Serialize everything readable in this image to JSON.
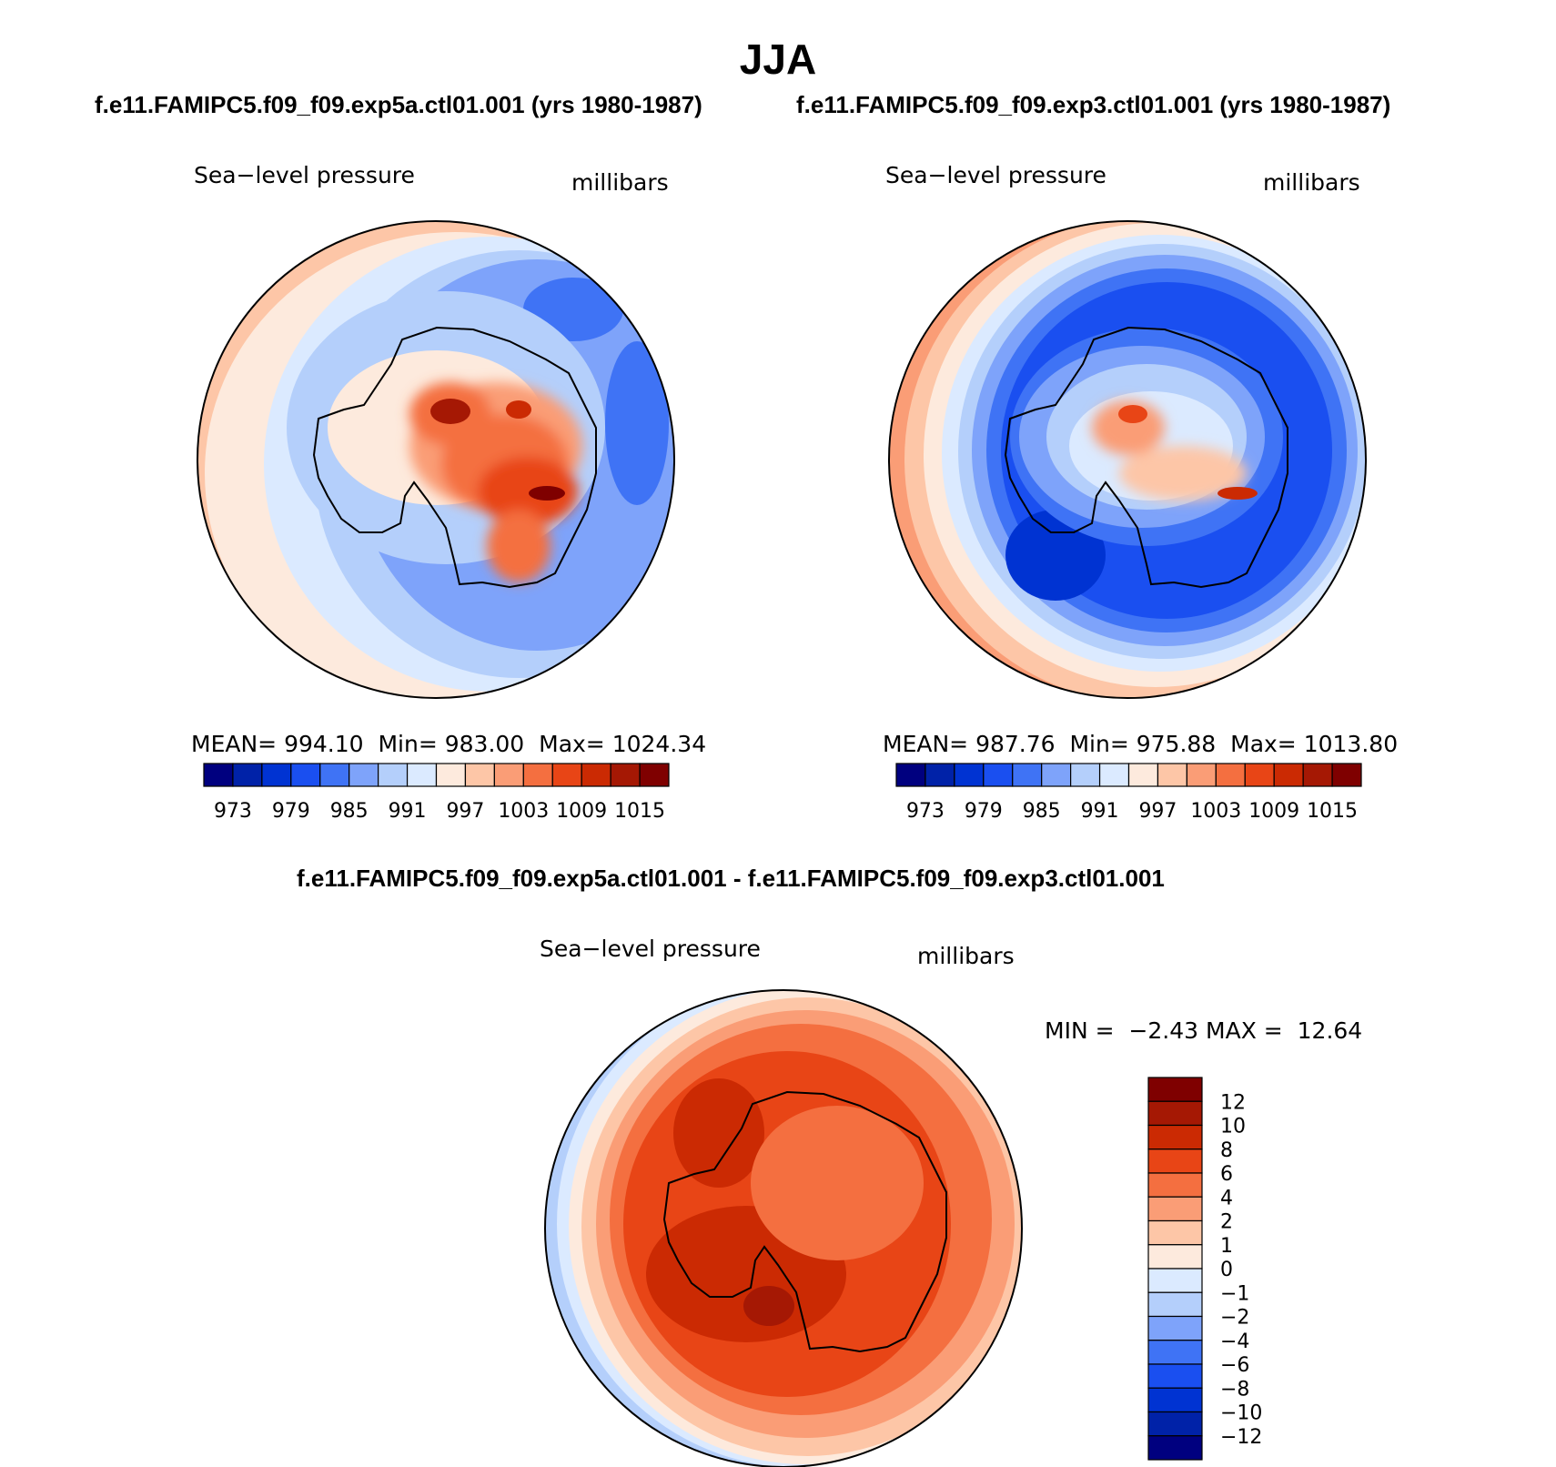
{
  "title": "JJA",
  "panels": [
    {
      "header": "f.e11.FAMIPC5.f09_f09.exp5a.ctl01.001 (yrs 1980-1987)",
      "variable": "Sea−level pressure",
      "units": "millibars",
      "stats": {
        "mean_label": "MEAN=",
        "mean": "994.10",
        "min_label": "Min=",
        "min": "983.00",
        "max_label": "Max=",
        "max": "1024.34"
      }
    },
    {
      "header": "f.e11.FAMIPC5.f09_f09.exp3.ctl01.001 (yrs 1980-1987)",
      "variable": "Sea−level pressure",
      "units": "millibars",
      "stats": {
        "mean_label": "MEAN=",
        "mean": "987.76",
        "min_label": "Min=",
        "min": "975.88",
        "max_label": "Max=",
        "max": "1013.80"
      }
    }
  ],
  "diff_panel": {
    "header": "f.e11.FAMIPC5.f09_f09.exp5a.ctl01.001 - f.e11.FAMIPC5.f09_f09.exp3.ctl01.001",
    "variable": "Sea−level pressure",
    "units": "millibars",
    "minmax": {
      "min_label": "MIN =",
      "min": "−2.43",
      "max_label": "MAX =",
      "max": "12.64"
    }
  },
  "chart_data": [
    {
      "type": "contour-map",
      "projection": "south-polar-stereographic",
      "title": "Sea-level pressure",
      "units": "millibars",
      "period": "1980-1987",
      "mean": 994.1,
      "min": 983.0,
      "max": 1024.34,
      "levels": [
        973,
        976,
        979,
        982,
        985,
        988,
        991,
        994,
        997,
        1000,
        1003,
        1006,
        1009,
        1012,
        1015
      ],
      "level_labels": [
        "973",
        "979",
        "985",
        "991",
        "997",
        "1003",
        "1009",
        "1015"
      ],
      "colors": [
        "#00007f",
        "#0022a8",
        "#0033d2",
        "#1a4ff0",
        "#3f73f5",
        "#7ea3fa",
        "#b4cffb",
        "#dbeaff",
        "#fdeadd",
        "#fdc6a7",
        "#fa9d76",
        "#f46f40",
        "#e84516",
        "#cb2a03",
        "#a51804",
        "#7f0000"
      ]
    },
    {
      "type": "contour-map",
      "projection": "south-polar-stereographic",
      "title": "Sea-level pressure",
      "units": "millibars",
      "period": "1980-1987",
      "mean": 987.76,
      "min": 975.88,
      "max": 1013.8,
      "levels": [
        973,
        976,
        979,
        982,
        985,
        988,
        991,
        994,
        997,
        1000,
        1003,
        1006,
        1009,
        1012,
        1015
      ],
      "level_labels": [
        "973",
        "979",
        "985",
        "991",
        "997",
        "1003",
        "1009",
        "1015"
      ],
      "colors": [
        "#00007f",
        "#0022a8",
        "#0033d2",
        "#1a4ff0",
        "#3f73f5",
        "#7ea3fa",
        "#b4cffb",
        "#dbeaff",
        "#fdeadd",
        "#fdc6a7",
        "#fa9d76",
        "#f46f40",
        "#e84516",
        "#cb2a03",
        "#a51804",
        "#7f0000"
      ]
    },
    {
      "type": "contour-map-difference",
      "projection": "south-polar-stereographic",
      "title": "Sea-level pressure",
      "units": "millibars",
      "min": -2.43,
      "max": 12.64,
      "levels": [
        -12,
        -10,
        -8,
        -6,
        -4,
        -2,
        -1,
        0,
        1,
        2,
        4,
        6,
        8,
        10,
        12
      ],
      "level_labels": [
        "12",
        "10",
        "8",
        "6",
        "4",
        "2",
        "1",
        "0",
        "−1",
        "−2",
        "−4",
        "−6",
        "−8",
        "−10",
        "−12"
      ],
      "colors": [
        "#00007f",
        "#0022a8",
        "#0033d2",
        "#1a4ff0",
        "#3f73f5",
        "#7ea3fa",
        "#b4cffb",
        "#dbeaff",
        "#fdeadd",
        "#fdc6a7",
        "#fa9d76",
        "#f46f40",
        "#e84516",
        "#cb2a03",
        "#a51804",
        "#7f0000"
      ]
    }
  ]
}
